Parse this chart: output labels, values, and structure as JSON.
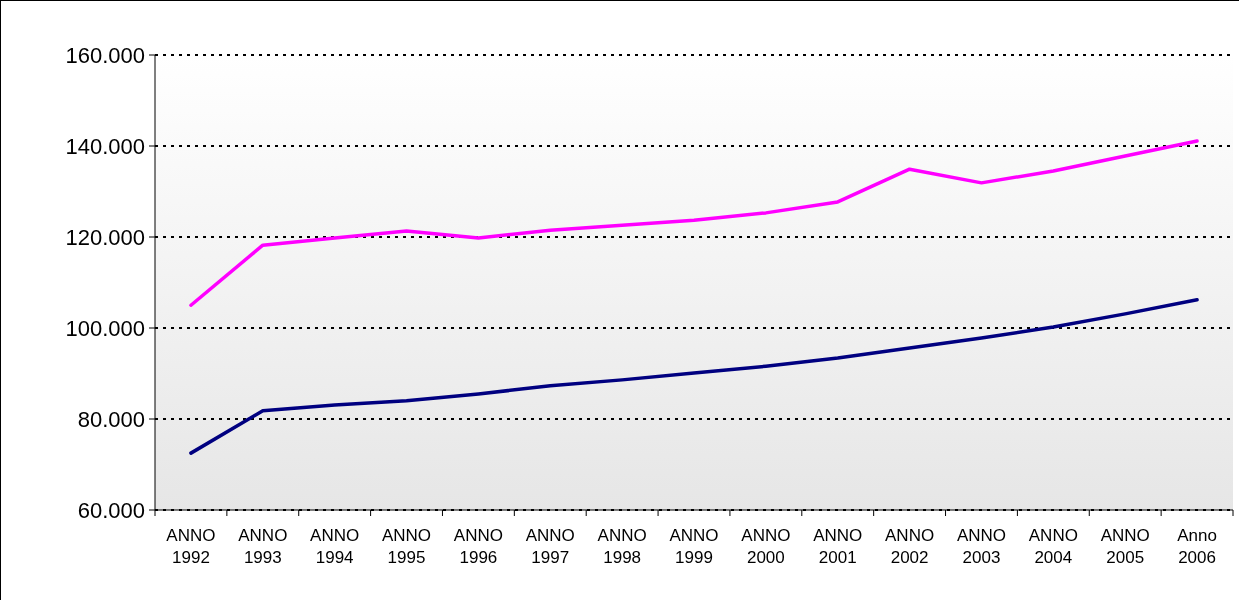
{
  "chart_data": {
    "type": "line",
    "categories": [
      "ANNO 1992",
      "ANNO 1993",
      "ANNO 1994",
      "ANNO 1995",
      "ANNO 1996",
      "ANNO 1997",
      "ANNO 1998",
      "ANNO 1999",
      "ANNO 2000",
      "ANNO 2001",
      "ANNO 2002",
      "ANNO 2003",
      "ANNO 2004",
      "ANNO 2005",
      "Anno 2006"
    ],
    "series": [
      {
        "color": "#ff00ff",
        "values": [
          105000,
          118200,
          119800,
          121300,
          119800,
          121500,
          122600,
          123700,
          125300,
          127700,
          134900,
          131900,
          134500,
          137800,
          141100
        ]
      },
      {
        "color": "#000080",
        "values": [
          72500,
          81800,
          83100,
          84000,
          85500,
          87300,
          88600,
          90100,
          91600,
          93400,
          95600,
          97800,
          100200,
          103100,
          106200
        ]
      }
    ],
    "ylim": [
      60000,
      160000
    ],
    "yticks": [
      {
        "value": 60000,
        "label": "60.000"
      },
      {
        "value": 80000,
        "label": "80.000"
      },
      {
        "value": 100000,
        "label": "100.000"
      },
      {
        "value": 120000,
        "label": "120.000"
      },
      {
        "value": 140000,
        "label": "140.000"
      },
      {
        "value": 160000,
        "label": "160.000"
      }
    ],
    "grid": "y",
    "marker": "none",
    "line_style": "solid"
  }
}
